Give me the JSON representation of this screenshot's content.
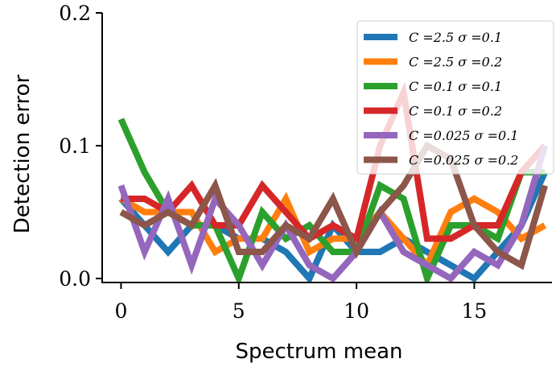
{
  "chart_data": {
    "type": "line",
    "title": "",
    "xlabel": "Spectrum mean",
    "ylabel": "Detection error",
    "xlim": [
      -0.8,
      18.3
    ],
    "ylim": [
      -0.003,
      0.2
    ],
    "xticks": [
      0,
      5,
      10,
      15
    ],
    "xtick_labels": [
      "0",
      "5",
      "10",
      "15"
    ],
    "yticks": [
      0.0,
      0.1,
      0.2
    ],
    "ytick_labels": [
      "0.0",
      "0.1",
      "0.2"
    ],
    "grid": false,
    "legend_position": "top-right",
    "x": [
      0,
      1,
      2,
      3,
      4,
      5,
      6,
      7,
      8,
      9,
      10,
      11,
      12,
      13,
      14,
      15,
      16,
      17,
      18
    ],
    "series": [
      {
        "name": "C =2.5 σ =0.1",
        "color": "#1f77b4",
        "values": [
          0.06,
          0.04,
          0.02,
          0.04,
          0.04,
          0.03,
          0.03,
          0.02,
          0.0,
          0.04,
          0.02,
          0.02,
          0.03,
          0.02,
          0.01,
          0.0,
          0.02,
          0.04,
          0.08
        ]
      },
      {
        "name": "C =2.5 σ =0.2",
        "color": "#ff7f0e",
        "values": [
          0.06,
          0.05,
          0.05,
          0.05,
          0.02,
          0.03,
          0.03,
          0.06,
          0.02,
          0.03,
          0.03,
          0.05,
          0.03,
          0.01,
          0.05,
          0.06,
          0.05,
          0.03,
          0.04
        ]
      },
      {
        "name": "C =0.1 σ =0.1",
        "color": "#2ca02c",
        "values": [
          0.12,
          0.08,
          0.05,
          0.04,
          0.04,
          0.0,
          0.05,
          0.03,
          0.04,
          0.02,
          0.02,
          0.07,
          0.06,
          0.0,
          0.04,
          0.04,
          0.03,
          0.08,
          0.08
        ]
      },
      {
        "name": "C =0.1 σ =0.2",
        "color": "#d62728",
        "values": [
          0.06,
          0.06,
          0.05,
          0.07,
          0.04,
          0.04,
          0.07,
          0.05,
          0.03,
          0.04,
          0.03,
          0.1,
          0.14,
          0.03,
          0.03,
          0.04,
          0.04,
          0.08,
          0.1
        ]
      },
      {
        "name": "C =0.025 σ =0.1",
        "color": "#9467bd",
        "values": [
          0.07,
          0.02,
          0.06,
          0.01,
          0.06,
          0.04,
          0.01,
          0.04,
          0.01,
          0.0,
          0.02,
          0.05,
          0.02,
          0.01,
          0.0,
          0.02,
          0.01,
          0.04,
          0.1
        ]
      },
      {
        "name": "C =0.025 σ =0.2",
        "color": "#8c564b",
        "values": [
          0.05,
          0.04,
          0.05,
          0.04,
          0.07,
          0.02,
          0.02,
          0.04,
          0.03,
          0.06,
          0.02,
          0.05,
          0.07,
          0.1,
          0.09,
          0.04,
          0.02,
          0.01,
          0.07
        ]
      }
    ]
  }
}
